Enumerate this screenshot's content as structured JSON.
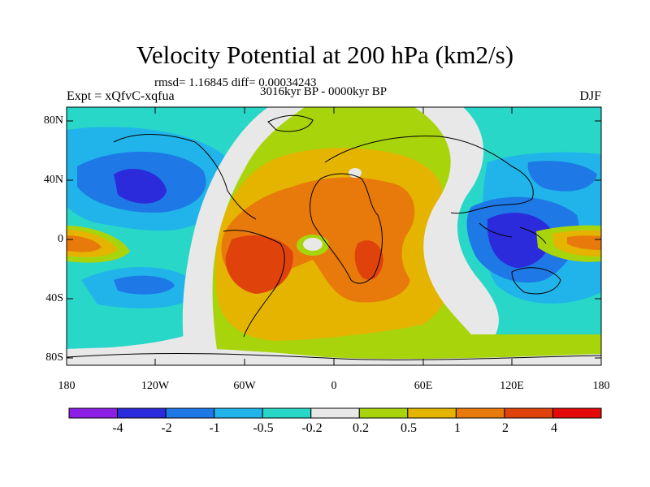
{
  "title": "Velocity Potential at 200 hPa (km2/s)",
  "stats": "rmsd= 1.16845 diff= 0.00034243",
  "experiment": "Expt = xQfvC-xqfua",
  "period": "3016kyr BP - 0000kyr BP",
  "season": "DJF",
  "chart_data": {
    "type": "heatmap",
    "projection": "cylindrical equidistant",
    "lon_range": [
      -180,
      180
    ],
    "lat_range": [
      -90,
      90
    ],
    "y_ticks": [
      "80N",
      "40N",
      "0",
      "40S",
      "80S"
    ],
    "x_ticks": [
      "180",
      "120W",
      "60W",
      "0",
      "60E",
      "120E",
      "180"
    ],
    "colorbar": {
      "labels": [
        "-4",
        "-2",
        "-1",
        "-0.5",
        "-0.2",
        "0.2",
        "0.5",
        "1",
        "2",
        "4"
      ],
      "colors": [
        "#8c1ee6",
        "#2b2bdc",
        "#1e78e6",
        "#20b4ea",
        "#28d7c8",
        "#e8e8e8",
        "#a8d40c",
        "#e4b400",
        "#e87a0c",
        "#e0420c",
        "#e40a0a"
      ]
    },
    "features": [
      {
        "name": "negative anomaly north pacific",
        "lon": -150,
        "lat": 35,
        "value": -2
      },
      {
        "name": "negative anomaly maritime continent",
        "lon": 120,
        "lat": -5,
        "value": -2
      },
      {
        "name": "positive anomaly south america",
        "lon": -55,
        "lat": -15,
        "value": 2
      },
      {
        "name": "positive anomaly east africa",
        "lon": 30,
        "lat": -10,
        "value": 2
      },
      {
        "name": "near-zero pocket equatorial atlantic",
        "lon": -10,
        "lat": 0,
        "value": 0
      }
    ]
  }
}
